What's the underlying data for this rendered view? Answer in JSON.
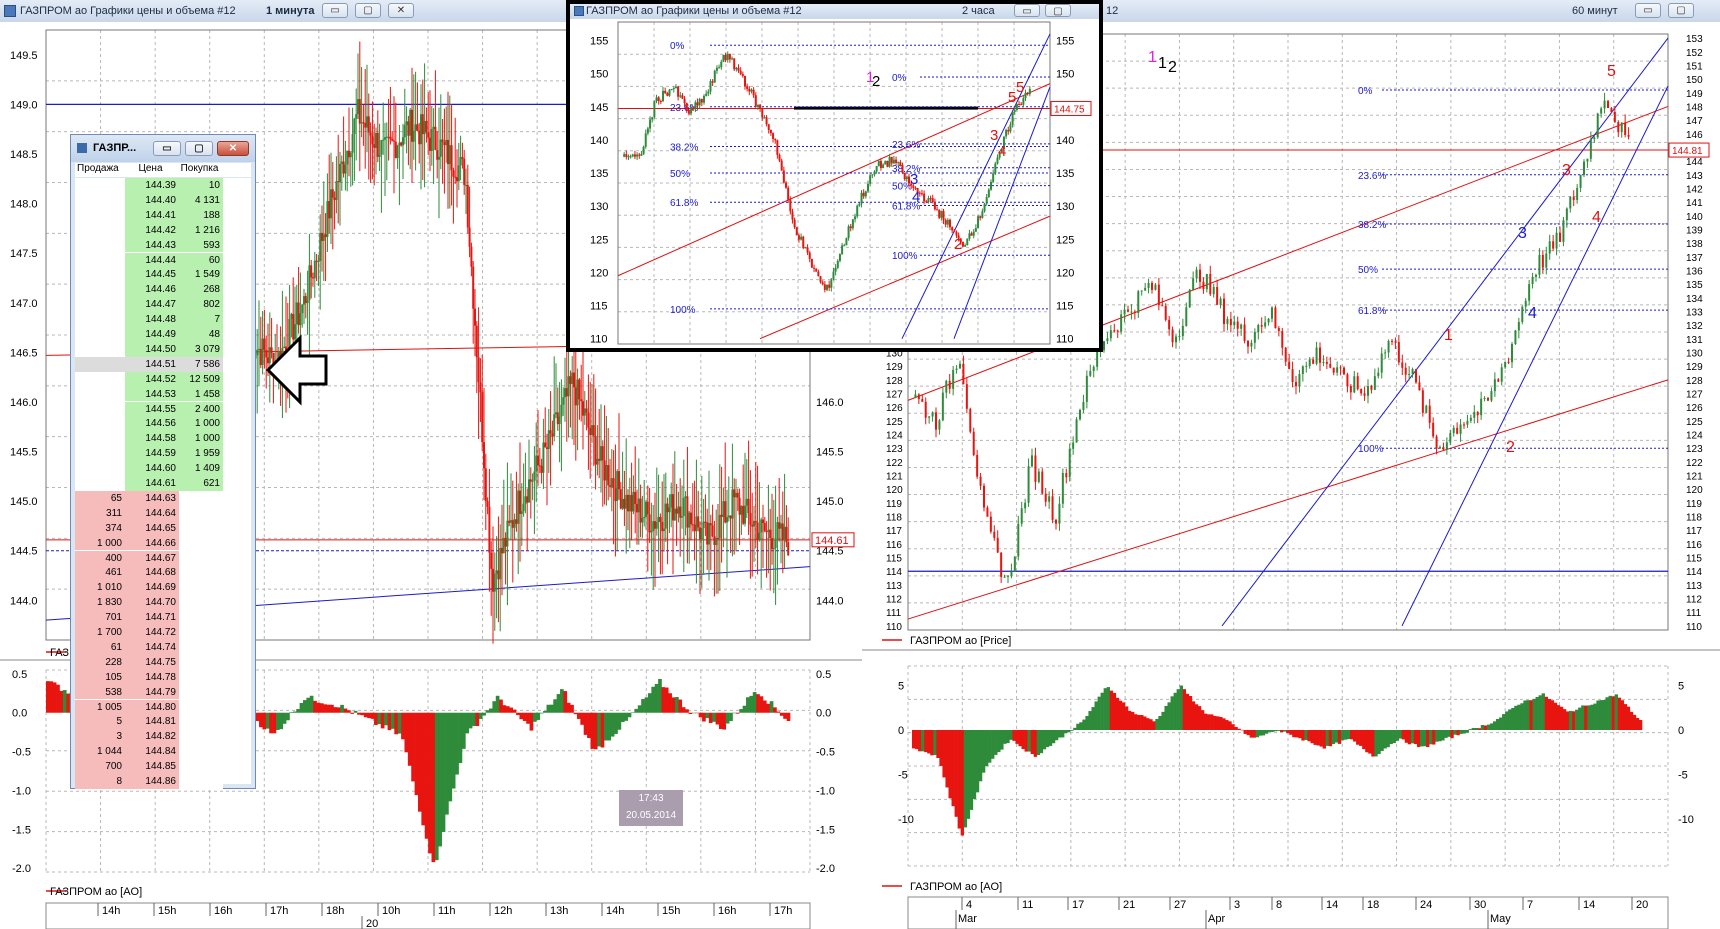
{
  "windows": {
    "left": {
      "title": "ГАЗПРОМ ао Графики цены и объема #12",
      "timeframe": "1 минута"
    },
    "middle": {
      "title": "ГАЗПРОМ ао Графики цены и объема #12",
      "timeframe": "2 часа"
    },
    "right": {
      "title_suffix": "12",
      "timeframe": "60 минут"
    }
  },
  "window_buttons": {
    "minimize": "▭",
    "maximize": "▢",
    "close": "✕"
  },
  "depth_window": {
    "title": "ГАЗПР...",
    "headers": [
      "Продажа",
      "Цена",
      "Покупка"
    ],
    "ask_rows": [
      {
        "price": "144.39",
        "buy": "10"
      },
      {
        "price": "144.40",
        "buy": "4 131"
      },
      {
        "price": "144.41",
        "buy": "188"
      },
      {
        "price": "144.42",
        "buy": "1 216"
      },
      {
        "price": "144.43",
        "buy": "593"
      },
      {
        "price": "144.44",
        "buy": "60"
      },
      {
        "price": "144.45",
        "buy": "1 549"
      },
      {
        "price": "144.46",
        "buy": "268"
      },
      {
        "price": "144.47",
        "buy": "802"
      },
      {
        "price": "144.48",
        "buy": "7"
      },
      {
        "price": "144.49",
        "buy": "48"
      },
      {
        "price": "144.50",
        "buy": "3 079"
      },
      {
        "price": "144.51",
        "buy": "7 586"
      },
      {
        "price": "144.52",
        "buy": "12 509"
      },
      {
        "price": "144.53",
        "buy": "1 458"
      },
      {
        "price": "144.55",
        "buy": "2 400"
      },
      {
        "price": "144.56",
        "buy": "1 000"
      },
      {
        "price": "144.58",
        "buy": "1 000"
      },
      {
        "price": "144.59",
        "buy": "1 959"
      },
      {
        "price": "144.60",
        "buy": "1 409"
      },
      {
        "price": "144.61",
        "buy": "621"
      }
    ],
    "bid_rows": [
      {
        "sell": "65",
        "price": "144.63"
      },
      {
        "sell": "311",
        "price": "144.64"
      },
      {
        "sell": "374",
        "price": "144.65"
      },
      {
        "sell": "1 000",
        "price": "144.66"
      },
      {
        "sell": "400",
        "price": "144.67"
      },
      {
        "sell": "461",
        "price": "144.68"
      },
      {
        "sell": "1 010",
        "price": "144.69"
      },
      {
        "sell": "1 830",
        "price": "144.70"
      },
      {
        "sell": "701",
        "price": "144.71"
      },
      {
        "sell": "1 700",
        "price": "144.72"
      },
      {
        "sell": "61",
        "price": "144.74"
      },
      {
        "sell": "228",
        "price": "144.75"
      },
      {
        "sell": "105",
        "price": "144.78"
      },
      {
        "sell": "538",
        "price": "144.79"
      },
      {
        "sell": "1 005",
        "price": "144.80"
      },
      {
        "sell": "5",
        "price": "144.81"
      },
      {
        "sell": "3",
        "price": "144.82"
      },
      {
        "sell": "1 044",
        "price": "144.84"
      },
      {
        "sell": "700",
        "price": "144.85"
      },
      {
        "sell": "8",
        "price": "144.86"
      }
    ]
  },
  "left_chart": {
    "price_axis": [
      "149.5",
      "149.0",
      "148.5",
      "148.0",
      "147.5",
      "147.0",
      "146.5",
      "146.0",
      "145.5",
      "145.0",
      "144.5",
      "144.0"
    ],
    "right_axis": [
      "146.0",
      "145.5",
      "145.0",
      "144.5",
      "144.0"
    ],
    "last_price": "144.61",
    "price_legend": "ГАЗПРОМ ао [Price]",
    "ao_legend": "ГАЗПРОМ ао [AO]",
    "ao_axis": [
      "0.5",
      "0.0",
      "-0.5",
      "-1.0",
      "-1.5",
      "-2.0"
    ],
    "time_axis": [
      "14h",
      "15h",
      "16h",
      "17h",
      "18h",
      "10h",
      "11h",
      "12h",
      "13h",
      "14h",
      "15h",
      "16h",
      "17h"
    ],
    "date_label": "20",
    "timestamp_time": "17:43",
    "timestamp_date": "20.05.2014"
  },
  "middle_chart": {
    "price_axis": [
      "155",
      "150",
      "145",
      "140",
      "135",
      "130",
      "125",
      "120",
      "115",
      "110"
    ],
    "last_price": "144.75",
    "fib_left": [
      "0%",
      "23.6%",
      "38.2%",
      "50%",
      "61.8%",
      "100%"
    ],
    "fib_right": [
      "0%",
      "23.6%",
      "38.2%",
      "50%",
      "61.8%",
      "100%"
    ],
    "waves": [
      "1",
      "2",
      "3",
      "4",
      "5",
      "2",
      "3",
      "4",
      "5"
    ]
  },
  "right_chart": {
    "price_axis": [
      "153",
      "152",
      "151",
      "150",
      "149",
      "148",
      "147",
      "146",
      "145",
      "144",
      "143",
      "142",
      "141",
      "140",
      "139",
      "138",
      "137",
      "136",
      "135",
      "134",
      "133",
      "132",
      "131",
      "130",
      "129",
      "128",
      "127",
      "126",
      "125",
      "124",
      "123",
      "122",
      "121",
      "120",
      "119",
      "118",
      "117",
      "116",
      "115",
      "114",
      "113",
      "112",
      "111",
      "110"
    ],
    "last_price": "144.81",
    "fib": [
      "0%",
      "23.6%",
      "38.2%",
      "50%",
      "61.8%",
      "100%"
    ],
    "price_legend": "ГАЗПРОМ ао [Price]",
    "ao_legend": "ГАЗПРОМ ао [AO]",
    "ao_axis": [
      "5",
      "0",
      "-5",
      "-10"
    ],
    "day_axis": [
      "4",
      "11",
      "17",
      "21",
      "27",
      "3",
      "8",
      "14",
      "18",
      "24",
      "30",
      "7",
      "14",
      "20"
    ],
    "month_axis": [
      "Mar",
      "Apr",
      "May"
    ],
    "waves_top": [
      "1",
      "2"
    ]
  },
  "colors": {
    "bull": "#2e8b3a",
    "bear": "#e8140f",
    "line_blue": "#1a1ad0",
    "line_red": "#e01010",
    "grid": "#b8b8b8"
  }
}
